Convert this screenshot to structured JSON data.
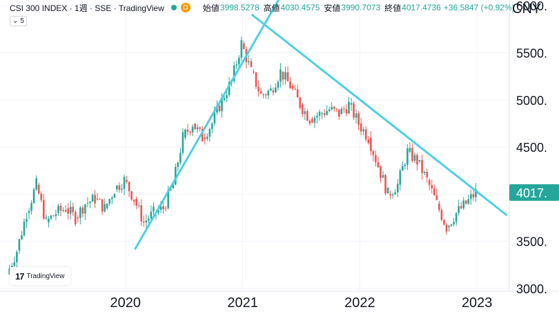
{
  "header": {
    "symbol": "CSI 300 INDEX · 1週 · SSE · TradingView",
    "delay_badge": "D",
    "open_label": "始値",
    "open": "3998.5278",
    "high_label": "高値",
    "high": "4030.4575",
    "low_label": "安値",
    "low": "3990.7073",
    "close_label": "終値",
    "close": "4017.4736",
    "change": "+36.5847 (+0.92%)"
  },
  "indicator": {
    "icon": "chevron-down-icon",
    "value": "5"
  },
  "currency": "CNY",
  "logo_text": "TradingView",
  "colors": {
    "up": "#26a69a",
    "down": "#ef5350",
    "trendline": "#4dd0e1",
    "price_badge": "#26a69a"
  },
  "chart_data": {
    "type": "candlestick",
    "x": [
      "2019-01",
      "2019-02",
      "2019-03",
      "2019-04",
      "2019-05",
      "2019-06",
      "2019-07",
      "2019-08",
      "2019-09",
      "2019-10",
      "2019-11",
      "2019-12",
      "2020-01",
      "2020-02",
      "2020-03",
      "2020-04",
      "2020-05",
      "2020-06",
      "2020-07",
      "2020-08",
      "2020-09",
      "2020-10",
      "2020-11",
      "2020-12",
      "2021-01",
      "2021-02",
      "2021-03",
      "2021-04",
      "2021-05",
      "2021-06",
      "2021-07",
      "2021-08",
      "2021-09",
      "2021-10",
      "2021-11",
      "2021-12",
      "2022-01",
      "2022-02",
      "2022-03",
      "2022-04",
      "2022-05",
      "2022-06",
      "2022-07",
      "2022-08",
      "2022-09",
      "2022-10",
      "2022-11",
      "2022-12",
      "2023-01"
    ],
    "series": [
      {
        "values": [
          3150,
          3400,
          3800,
          4100,
          3700,
          3800,
          3850,
          3750,
          3900,
          3950,
          3850,
          4050,
          4150,
          3950,
          3700,
          3800,
          3850,
          4100,
          4600,
          4750,
          4600,
          4750,
          5000,
          5200,
          5600,
          5300,
          5050,
          5100,
          5300,
          5150,
          4950,
          4800,
          4850,
          4900,
          4850,
          4950,
          4750,
          4600,
          4300,
          4000,
          4100,
          4450,
          4350,
          4150,
          3900,
          3650,
          3800,
          3900,
          4017.47
        ]
      }
    ],
    "current_price_label": "4017.",
    "y_ticks": [
      "3000.",
      "3500.",
      "4000.",
      "4500.",
      "5000.",
      "5500.",
      "6000."
    ],
    "x_ticks": [
      "2020",
      "2021",
      "2022",
      "2023"
    ],
    "ylim": [
      2970,
      6060
    ],
    "trendlines": [
      {
        "from": [
          "2020-02",
          3420
        ],
        "to": [
          "2021-05",
          6120
        ]
      },
      {
        "from": [
          "2021-02",
          5900
        ],
        "to": [
          "2023-04",
          3780
        ]
      }
    ],
    "grid": true
  }
}
